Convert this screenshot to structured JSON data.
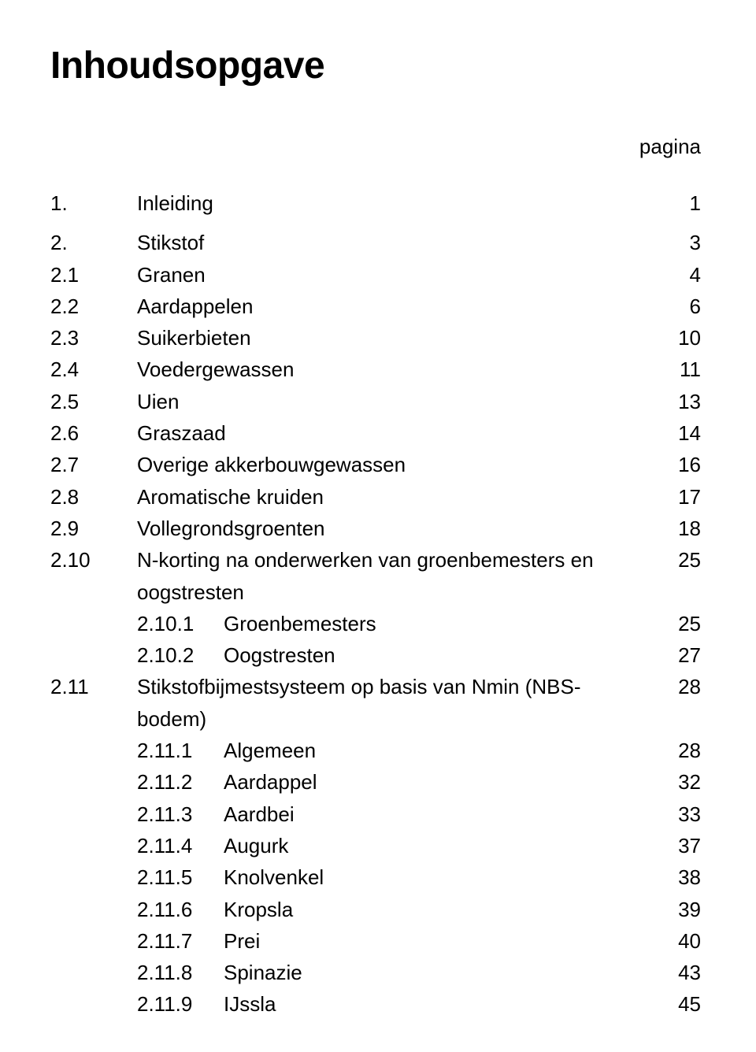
{
  "title": "Inhoudsopgave",
  "column_label": "pagina",
  "entries": [
    {
      "num": "1.",
      "title": "Inleiding",
      "page": "1",
      "level": 0
    },
    {
      "num": "2.",
      "title": "Stikstof",
      "page": "3",
      "level": 0,
      "space_before": true
    },
    {
      "num": "2.1",
      "title": "Granen",
      "page": "4",
      "level": 0
    },
    {
      "num": "2.2",
      "title": "Aardappelen",
      "page": "6",
      "level": 0
    },
    {
      "num": "2.3",
      "title": "Suikerbieten",
      "page": "10",
      "level": 0
    },
    {
      "num": "2.4",
      "title": "Voedergewassen",
      "page": "11",
      "level": 0
    },
    {
      "num": "2.5",
      "title": "Uien",
      "page": "13",
      "level": 0
    },
    {
      "num": "2.6",
      "title": "Graszaad",
      "page": "14",
      "level": 0
    },
    {
      "num": "2.7",
      "title": "Overige akkerbouwgewassen",
      "page": "16",
      "level": 0
    },
    {
      "num": "2.8",
      "title": "Aromatische kruiden",
      "page": "17",
      "level": 0
    },
    {
      "num": "2.9",
      "title": "Vollegrondsgroenten",
      "page": "18",
      "level": 0
    },
    {
      "num": "2.10",
      "title": "N-korting na onderwerken van groenbemesters en oogstresten",
      "page": "25",
      "level": 0
    },
    {
      "num": "2.10.1",
      "title": "Groenbemesters",
      "page": "25",
      "level": 1
    },
    {
      "num": "2.10.2",
      "title": "Oogstresten",
      "page": "27",
      "level": 1
    },
    {
      "num": "2.11",
      "title": "Stikstofbijmestsysteem op basis van Nmin (NBS-bodem)",
      "page": "28",
      "level": 0
    },
    {
      "num": "2.11.1",
      "title": "Algemeen",
      "page": "28",
      "level": 1
    },
    {
      "num": "2.11.2",
      "title": "Aardappel",
      "page": "32",
      "level": 1
    },
    {
      "num": "2.11.3",
      "title": "Aardbei",
      "page": "33",
      "level": 1
    },
    {
      "num": "2.11.4",
      "title": "Augurk",
      "page": "37",
      "level": 1
    },
    {
      "num": "2.11.5",
      "title": "Knolvenkel",
      "page": "38",
      "level": 1
    },
    {
      "num": "2.11.6",
      "title": "Kropsla",
      "page": "39",
      "level": 1
    },
    {
      "num": "2.11.7",
      "title": "Prei",
      "page": "40",
      "level": 1
    },
    {
      "num": "2.11.8",
      "title": "Spinazie",
      "page": "43",
      "level": 1
    },
    {
      "num": "2.11.9",
      "title": "IJssla",
      "page": "45",
      "level": 1
    }
  ]
}
